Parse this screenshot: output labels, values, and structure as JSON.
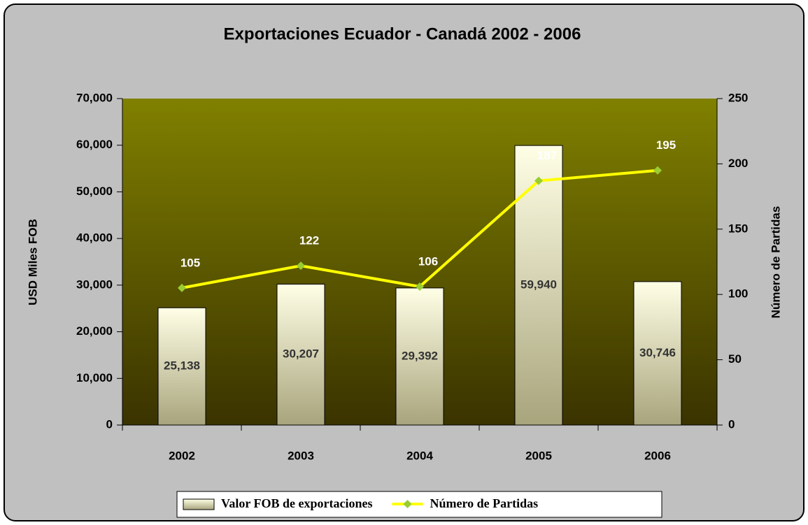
{
  "chart_data": {
    "type": "bar_line",
    "title": "Exportaciones Ecuador - Canadá 2002 - 2006",
    "y_label": "USD Miles FOB",
    "y2_label": "Número de Partidas",
    "categories": [
      "2002",
      "2003",
      "2004",
      "2005",
      "2006"
    ],
    "series": [
      {
        "name": "Valor FOB de exportaciones",
        "type": "bar",
        "color": "#f5f3c8",
        "values": [
          25138,
          30207,
          29392,
          59940,
          30746
        ],
        "value_labels": [
          "25,138",
          "30,207",
          "29,392",
          "59,940",
          "30,746"
        ]
      },
      {
        "name": "Número de Partidas",
        "type": "line",
        "axis": "y2",
        "color": "#ffff00",
        "marker_color": "#9acd32",
        "values": [
          105,
          122,
          106,
          187,
          195
        ]
      }
    ],
    "ylim": [
      0,
      70000
    ],
    "yticks": [
      {
        "value": 0,
        "label": "0"
      },
      {
        "value": 10000,
        "label": "10,000"
      },
      {
        "value": 20000,
        "label": "20,000"
      },
      {
        "value": 30000,
        "label": "30,000"
      },
      {
        "value": 40000,
        "label": "40,000"
      },
      {
        "value": 50000,
        "label": "50,000"
      },
      {
        "value": 60000,
        "label": "60,000"
      },
      {
        "value": 70000,
        "label": "70,000"
      }
    ],
    "y2lim": [
      0,
      250
    ],
    "y2ticks": [
      0,
      50,
      100,
      150,
      200,
      250
    ],
    "legend": "bottom"
  }
}
